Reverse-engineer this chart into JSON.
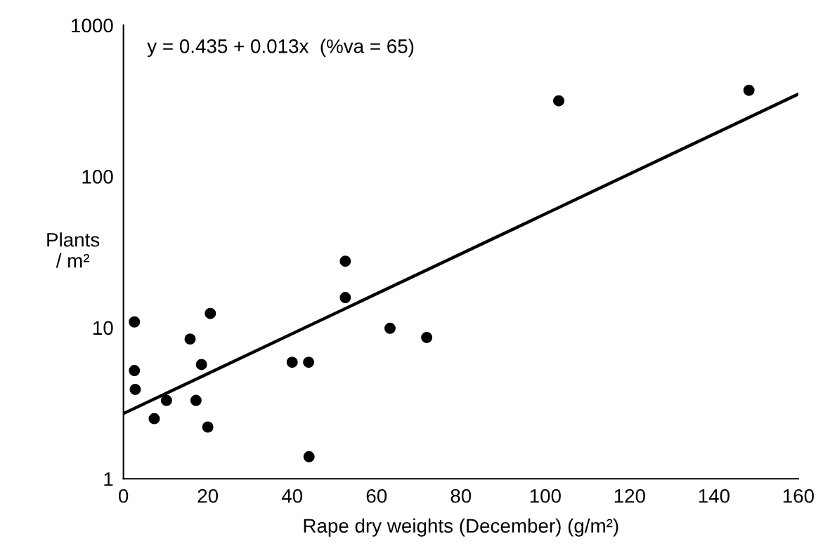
{
  "chart_data": {
    "type": "scatter",
    "xlabel": "Rape dry weights (December) (g/m²)",
    "ylabel": "Plants\n/ m²",
    "annotations": [
      "y = 0.435 + 0.013x  (%va = 65)"
    ],
    "log": "y",
    "xlim": [
      0,
      160
    ],
    "xticks": [
      0,
      20,
      40,
      60,
      80,
      100,
      120,
      140,
      160
    ],
    "ylim": [
      1,
      1000
    ],
    "yticks": [
      1,
      10,
      100,
      1000
    ],
    "grid": false,
    "legend": false,
    "series": [
      {
        "color": "#000000",
        "marker": "circle",
        "x": [
          2.6,
          2.6,
          2.8,
          7.3,
          10.2,
          15.8,
          17.2,
          18.5,
          20.0,
          20.6,
          40.0,
          43.9,
          44.0,
          52.6,
          52.6,
          63.2,
          71.9,
          103.2,
          148.3
        ],
        "values": [
          10.9,
          5.2,
          3.9,
          2.5,
          3.3,
          8.4,
          3.3,
          5.7,
          2.2,
          12.4,
          5.9,
          5.9,
          1.4,
          27.5,
          15.8,
          9.9,
          8.6,
          316,
          371
        ]
      },
      {
        "type": "line",
        "color": "#000000",
        "x": [
          0,
          160
        ],
        "values": [
          2.7,
          350
        ],
        "line_style": "solid"
      }
    ]
  }
}
